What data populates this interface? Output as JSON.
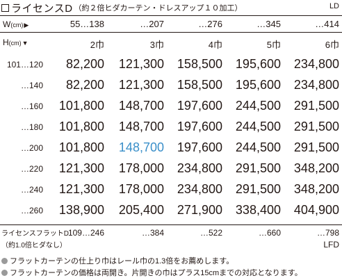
{
  "title": {
    "main": "ライセンスD",
    "sub": "（約２倍ヒダカーテン・ドレスアップ１０加工）",
    "code": "LD"
  },
  "width_header": {
    "label": "W",
    "unit": "(cm)",
    "arrow": "▶",
    "values": [
      "55…138",
      "…207",
      "…276",
      "…345",
      "…414"
    ]
  },
  "height_header": {
    "label": "H",
    "unit": "(cm)",
    "arrow": "▼",
    "panels": [
      "2巾",
      "3巾",
      "4巾",
      "5巾",
      "6巾"
    ]
  },
  "rows": [
    {
      "height": "101…120",
      "prices": [
        "82,200",
        "121,300",
        "158,500",
        "195,600",
        "234,800"
      ]
    },
    {
      "height": "…140",
      "prices": [
        "82,200",
        "121,300",
        "158,500",
        "195,600",
        "234,800"
      ]
    },
    {
      "height": "…160",
      "prices": [
        "101,800",
        "148,700",
        "197,600",
        "244,500",
        "291,500"
      ]
    },
    {
      "height": "…180",
      "prices": [
        "101,800",
        "148,700",
        "197,600",
        "244,500",
        "291,500"
      ]
    },
    {
      "height": "…200",
      "prices": [
        "101,800",
        "148,700",
        "197,600",
        "244,500",
        "291,500"
      ]
    },
    {
      "height": "…220",
      "prices": [
        "121,300",
        "178,000",
        "234,800",
        "291,500",
        "348,200"
      ]
    },
    {
      "height": "…240",
      "prices": [
        "121,300",
        "178,000",
        "234,800",
        "291,500",
        "348,200"
      ]
    },
    {
      "height": "…260",
      "prices": [
        "138,900",
        "205,400",
        "271,900",
        "338,400",
        "404,900"
      ]
    }
  ],
  "highlight_color": "#3a8fc9",
  "flat": {
    "label1": "ライセンスフラットD",
    "label2": "（約1.0倍ヒダなし）",
    "widths": [
      "109…246",
      "…384",
      "…522",
      "…660",
      "…798"
    ],
    "code": "LFD"
  },
  "notes": [
    "フラットカーテンの仕上り巾はレール巾の1.3倍をお薦めします。",
    "フラットカーテンの価格は両開き。片開きの巾はプラス15cmまでの対応となります。"
  ]
}
